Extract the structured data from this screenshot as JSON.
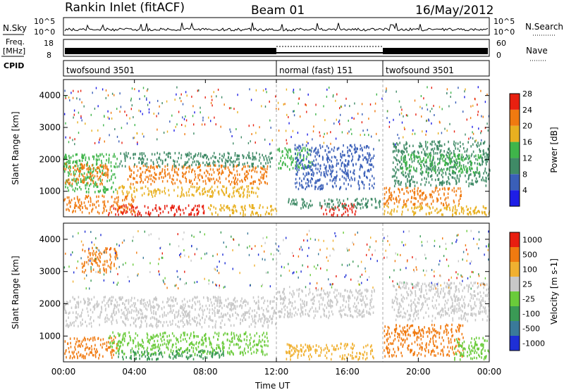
{
  "header": {
    "station": "Rankin Inlet (fitACF)",
    "beam": "Beam 01",
    "date": "16/May/2012"
  },
  "left_labels": {
    "nsky": "N.Sky",
    "freq_line1": "Freq.",
    "freq_line2": "[MHz]",
    "cpid": "CPID",
    "nsky_top": "10^5",
    "nsky_bottom": "10^0",
    "freq_top": "18",
    "freq_bottom": "8"
  },
  "right_labels": {
    "nsearch": "N.Search",
    "nave": "Nave",
    "nsearch_top": "10^5",
    "nsearch_bottom": "10^0",
    "nave_top": "60",
    "nave_bottom": "0"
  },
  "cpid_segments": [
    {
      "label": "twofsound 3501",
      "start_hr": 0,
      "end_hr": 12
    },
    {
      "label": "normal (fast) 151",
      "start_hr": 12,
      "end_hr": 18
    },
    {
      "label": "twofsound 3501",
      "start_hr": 18,
      "end_hr": 24
    }
  ],
  "xaxis": {
    "title": "Time UT",
    "ticks": [
      "00:00",
      "04:00",
      "08:00",
      "12:00",
      "16:00",
      "20:00",
      "00:00"
    ]
  },
  "chart_data": [
    {
      "type": "heatmap",
      "panel": "power",
      "ylabel": "Slant Range [km]",
      "yticks": [
        1000,
        2000,
        3000,
        4000
      ],
      "ylim": [
        200,
        4500
      ],
      "xlim_hours": [
        0,
        24
      ],
      "colorbar_label": "Power [dB]",
      "colorbar_ticks": [
        "4",
        "8",
        "12",
        "16",
        "20",
        "24",
        "28"
      ],
      "colors": [
        "#1e1ee6",
        "#3a5fb8",
        "#3f8a66",
        "#3fb54a",
        "#e8b020",
        "#f07a10",
        "#e82010"
      ],
      "bands": [
        {
          "start_hr": 0.0,
          "end_hr": 3.0,
          "range_km": [
            1000,
            2200
          ],
          "color_index": 3
        },
        {
          "start_hr": 0.0,
          "end_hr": 2.5,
          "range_km": [
            1250,
            1900
          ],
          "color_index": 5
        },
        {
          "start_hr": 0.0,
          "end_hr": 4.0,
          "range_km": [
            350,
            900
          ],
          "color_index": 5
        },
        {
          "start_hr": 2.5,
          "end_hr": 8.0,
          "range_km": [
            280,
            600
          ],
          "color_index": 6
        },
        {
          "start_hr": 3.0,
          "end_hr": 11.0,
          "range_km": [
            850,
            1200
          ],
          "color_index": 4
        },
        {
          "start_hr": 3.5,
          "end_hr": 11.5,
          "range_km": [
            1250,
            1850
          ],
          "color_index": 5
        },
        {
          "start_hr": 3.0,
          "end_hr": 11.8,
          "range_km": [
            1800,
            2250
          ],
          "color_index": 2
        },
        {
          "start_hr": 8.0,
          "end_hr": 12.0,
          "range_km": [
            280,
            600
          ],
          "color_index": 4
        },
        {
          "start_hr": 12.0,
          "end_hr": 14.0,
          "range_km": [
            1700,
            2400
          ],
          "color_index": 3
        },
        {
          "start_hr": 13.0,
          "end_hr": 17.5,
          "range_km": [
            1100,
            2500
          ],
          "color_index": 1
        },
        {
          "start_hr": 14.5,
          "end_hr": 16.5,
          "range_km": [
            280,
            650
          ],
          "color_index": 6
        },
        {
          "start_hr": 12.5,
          "end_hr": 18.0,
          "range_km": [
            500,
            800
          ],
          "color_index": 2
        },
        {
          "start_hr": 18.0,
          "end_hr": 22.5,
          "range_km": [
            600,
            1150
          ],
          "color_index": 5
        },
        {
          "start_hr": 18.0,
          "end_hr": 24.0,
          "range_km": [
            280,
            600
          ],
          "color_index": 4
        },
        {
          "start_hr": 18.5,
          "end_hr": 24.0,
          "range_km": [
            1200,
            2600
          ],
          "color_index": 2
        },
        {
          "start_hr": 19.0,
          "end_hr": 23.5,
          "range_km": [
            1600,
            2200
          ],
          "color_index": 3
        }
      ]
    },
    {
      "type": "heatmap",
      "panel": "velocity",
      "ylabel": "Slant Range [km]",
      "yticks": [
        1000,
        2000,
        3000,
        4000
      ],
      "ylim": [
        200,
        4500
      ],
      "xlim_hours": [
        0,
        24
      ],
      "colorbar_label": "Velocity [m s-1]",
      "colorbar_ticks": [
        "1000",
        "500",
        "100",
        "25",
        "-25",
        "-100",
        "-500",
        "-1000"
      ],
      "colors": [
        "#1e2fd6",
        "#3a7a9a",
        "#3a9a55",
        "#6acb3a",
        "#c8c8c8",
        "#f0b030",
        "#f07a10",
        "#e81e10"
      ],
      "bands": [
        {
          "start_hr": 0.0,
          "end_hr": 12.0,
          "range_km": [
            1300,
            2250
          ],
          "color_index": 4
        },
        {
          "start_hr": 12.0,
          "end_hr": 17.5,
          "range_km": [
            1600,
            2500
          ],
          "color_index": 4
        },
        {
          "start_hr": 18.5,
          "end_hr": 24.0,
          "range_km": [
            1500,
            2700
          ],
          "color_index": 4
        },
        {
          "start_hr": 0.0,
          "end_hr": 3.0,
          "range_km": [
            350,
            1000
          ],
          "color_index": 6
        },
        {
          "start_hr": 2.5,
          "end_hr": 11.5,
          "range_km": [
            450,
            1150
          ],
          "color_index": 3
        },
        {
          "start_hr": 3.0,
          "end_hr": 9.0,
          "range_km": [
            300,
            600
          ],
          "color_index": 2
        },
        {
          "start_hr": 12.5,
          "end_hr": 17.5,
          "range_km": [
            300,
            800
          ],
          "color_index": 5
        },
        {
          "start_hr": 18.0,
          "end_hr": 22.5,
          "range_km": [
            400,
            1400
          ],
          "color_index": 6
        },
        {
          "start_hr": 22.0,
          "end_hr": 24.0,
          "range_km": [
            300,
            1000
          ],
          "color_index": 3
        },
        {
          "start_hr": 1.0,
          "end_hr": 3.0,
          "range_km": [
            3000,
            3800
          ],
          "color_index": 6
        }
      ]
    }
  ]
}
